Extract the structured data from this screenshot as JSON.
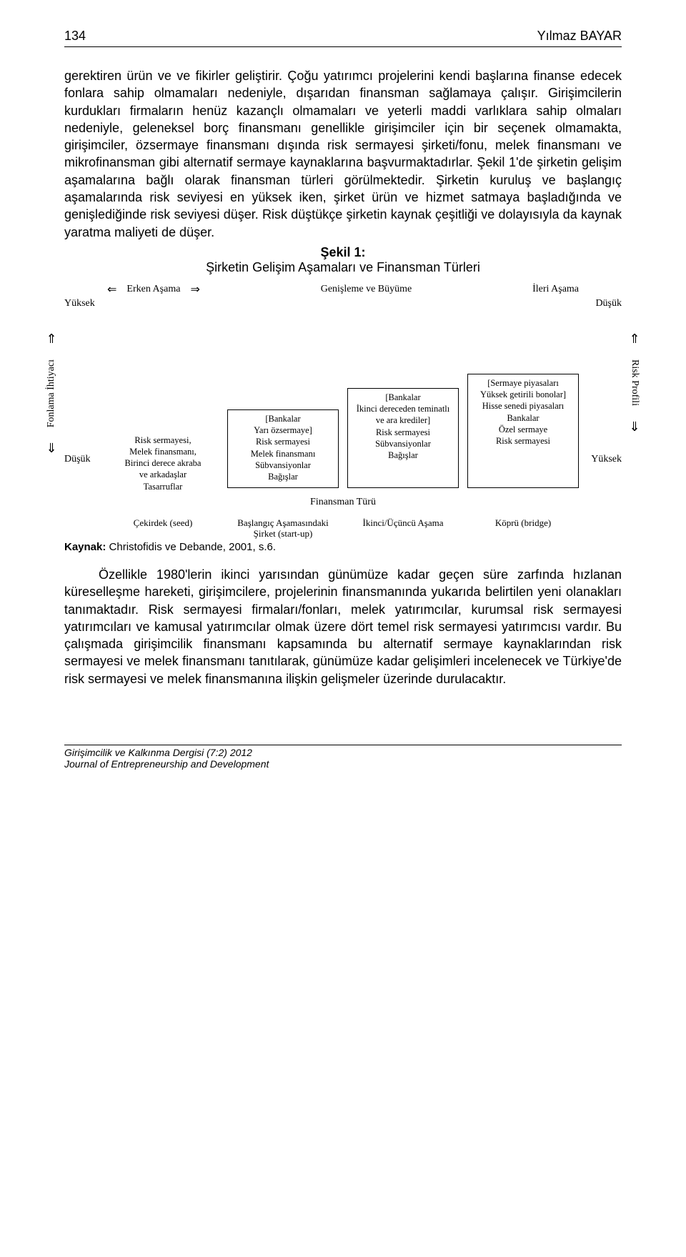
{
  "header": {
    "page_number": "134",
    "author": "Yılmaz BAYAR"
  },
  "body": {
    "para1": "gerektiren ürün ve ve fikirler geliştirir. Çoğu yatırımcı projelerini kendi başlarına finanse edecek fonlara sahip olmamaları nedeniyle, dışarıdan finansman sağlamaya çalışır. Girişimcilerin kurdukları firmaların henüz kazançlı olmamaları ve yeterli maddi varlıklara sahip olmaları nedeniyle, geleneksel borç finansmanı genellikle girişimciler için bir seçenek olmamakta, girişimciler, özsermaye finansmanı dışında risk sermayesi şirketi/fonu, melek finansmanı ve mikrofinansman gibi alternatif sermaye kaynaklarına başvurmaktadırlar. Şekil 1'de şirketin gelişim aşamalarına bağlı olarak finansman türleri görülmektedir. Şirketin kuruluş ve başlangıç aşamalarında risk seviyesi en yüksek iken, şirket ürün ve hizmet satmaya başladığında ve genişlediğinde risk seviyesi düşer. Risk düştükçe şirketin kaynak çeşitliği ve dolayısıyla da kaynak yaratma maliyeti de düşer.",
    "para2": "Özellikle 1980'lerin ikinci yarısından günümüze kadar geçen süre zarfında hızlanan küreselleşme hareketi, girişimcilere, projelerinin finansmanında yukarıda belirtilen yeni olanakları tanımaktadır. Risk sermayesi firmaları/fonları, melek yatırımcılar, kurumsal risk sermayesi yatırımcıları ve kamusal yatırımcılar olmak üzere dört temel risk sermayesi yatırımcısı vardır. Bu çalışmada girişimcilik finansmanı kapsamında bu alternatif sermaye kaynaklarından risk sermayesi ve melek finansmanı tanıtılarak, günümüze kadar gelişimleri incelenecek ve Türkiye'de risk sermayesi ve melek finansmanına ilişkin gelişmeler üzerinde durulacaktır."
  },
  "figure": {
    "title": "Şekil 1:",
    "subtitle": "Şirketin Gelişim Aşamaları ve Finansman Türleri",
    "top_stages": {
      "left_arrow": "⇐",
      "stage1": "Erken Aşama",
      "right_arrow": "⇒",
      "stage2": "Genişleme ve Büyüme",
      "stage3": "İleri Aşama"
    },
    "left_axis": {
      "top": "Yüksek",
      "bottom": "Düşük",
      "label": "Fonlama İhtiyacı"
    },
    "right_axis": {
      "top": "Düşük",
      "bottom": "Yüksek",
      "label": "Risk Profili"
    },
    "columns": [
      {
        "box_lines": [],
        "below_lines": [
          "Risk sermayesi,",
          "Melek finansmanı,",
          "Birinci derece akraba",
          "ve arkadaşlar",
          "Tasarruflar"
        ],
        "xlabel": "Çekirdek (seed)"
      },
      {
        "box_lines": [
          "[Bankalar",
          "Yarı özsermaye]",
          "Risk sermayesi",
          "Melek finansmanı",
          "Sübvansiyonlar",
          "Bağışlar"
        ],
        "below_lines": [],
        "xlabel": "Başlangıç Aşamasındaki Şirket (start-up)"
      },
      {
        "box_lines": [
          "[Bankalar",
          "İkinci dereceden teminatlı",
          "ve ara krediler]",
          "Risk sermayesi",
          "Sübvansiyonlar",
          "Bağışlar"
        ],
        "below_lines": [],
        "xlabel": "İkinci/Üçüncü Aşama"
      },
      {
        "box_lines": [
          "[Sermaye piyasaları",
          "Yüksek getirili bonolar]",
          "Hisse senedi piyasaları",
          "Bankalar",
          "Özel sermaye",
          "Risk sermayesi"
        ],
        "below_lines": [],
        "xlabel": "Köprü (bridge)"
      }
    ],
    "xaxis_title": "Finansman Türü",
    "arrow_up": "⇑",
    "arrow_down": "⇓"
  },
  "source": {
    "label": "Kaynak:",
    "text": " Christofidis ve Debande, 2001, s.6."
  },
  "footer": {
    "line1": "Girişimcilik ve Kalkınma Dergisi (7:2) 2012",
    "line2": "Journal of Entrepreneurship and Development"
  },
  "colors": {
    "text": "#000000",
    "background": "#ffffff",
    "border": "#000000"
  }
}
